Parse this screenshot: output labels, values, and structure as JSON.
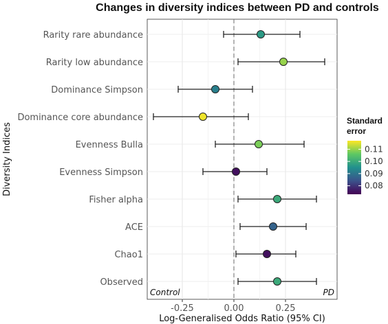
{
  "chart_data": {
    "type": "forest",
    "title": "Changes in diversity indices between PD and controls",
    "xlabel": "Log-Generalised Odds Ratio (95% CI)",
    "ylabel": "Diversity Indices",
    "xlim": [
      -0.42,
      0.5
    ],
    "xticks": [
      -0.25,
      0.0,
      0.25
    ],
    "xtick_labels": [
      "-0.25",
      "0.00",
      "0.25"
    ],
    "reference_line": 0.0,
    "left_annotation": "Control",
    "right_annotation": "PD",
    "legend": {
      "title": "Standard error",
      "colormap": "viridis",
      "range": [
        0.073,
        0.117
      ],
      "ticks": [
        0.08,
        0.09,
        0.1,
        0.11
      ],
      "tick_labels": [
        "0.08",
        "0.09",
        "0.10",
        "0.11"
      ],
      "position": "right"
    },
    "categories": [
      "Rarity rare abundance",
      "Rarity low abundance",
      "Dominance Simpson",
      "Dominance core abundance",
      "Evenness Bulla",
      "Evenness Simpson",
      "Fisher alpha",
      "ACE",
      "Chao1",
      "Observed"
    ],
    "estimates": [
      0.13,
      0.24,
      -0.09,
      -0.15,
      0.12,
      0.01,
      0.21,
      0.19,
      0.16,
      0.21
    ],
    "ci_lower": [
      -0.05,
      0.02,
      -0.27,
      -0.39,
      -0.09,
      -0.15,
      0.02,
      0.03,
      0.01,
      0.02
    ],
    "ci_upper": [
      0.32,
      0.44,
      0.09,
      0.07,
      0.34,
      0.16,
      0.4,
      0.35,
      0.3,
      0.4
    ],
    "standard_error": [
      0.097,
      0.11,
      0.092,
      0.116,
      0.108,
      0.075,
      0.1,
      0.087,
      0.075,
      0.1
    ]
  }
}
